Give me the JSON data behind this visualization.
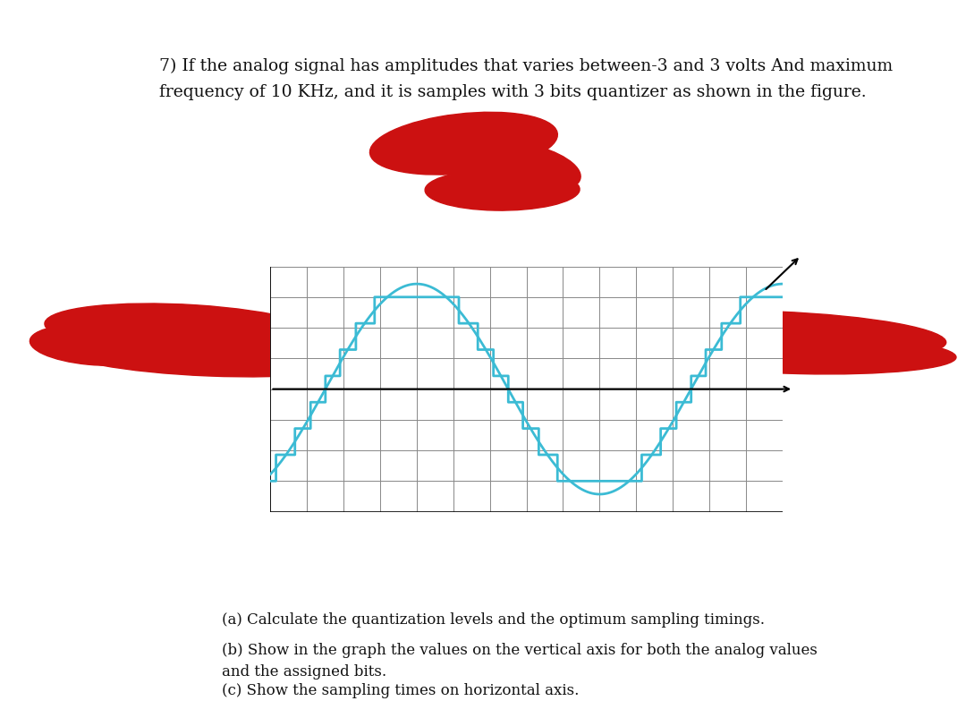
{
  "title_text": "7) If the analog signal has amplitudes that varies between-3 and 3 volts And maximum\nfrequency of 10 KHz, and it is samples with 3 bits quantizer as shown in the figure.",
  "question_a": "(a) Calculate the quantization levels and the optimum sampling timings.",
  "question_b": "(b) Show in the graph the values on the vertical axis for both the analog values\nand the assigned bits.",
  "question_c": "(c) Show the sampling times on horizontal axis.",
  "bg_color_top": "#ffffff",
  "bg_color_bottom": "#ffffff",
  "separator_color": "#1a1a1a",
  "redaction_color": "#cc1111",
  "signal_color": "#3bbbd4",
  "grid_color": "#888888",
  "axis_color": "#222222",
  "text_color": "#111111",
  "graph_rows": 8,
  "graph_cols": 14,
  "num_cycles": 1.5,
  "amplitude": 3,
  "n_bits": 3
}
